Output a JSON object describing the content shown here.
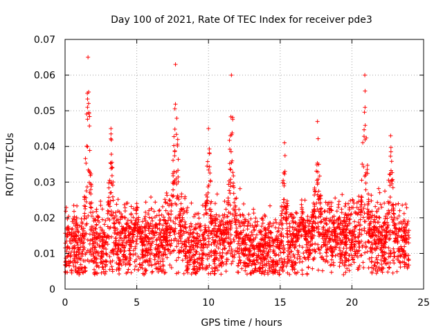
{
  "chart_data": {
    "type": "scatter",
    "title": "Day 100 of 2021, Rate Of TEC Index for receiver pde3",
    "xlabel": "GPS time / hours",
    "ylabel": "ROTI / TECUs",
    "xlim": [
      0,
      25
    ],
    "ylim": [
      0,
      0.07
    ],
    "xticks": [
      0,
      5,
      10,
      15,
      20,
      25
    ],
    "yticks": [
      0,
      0.01,
      0.02,
      0.03,
      0.04,
      0.05,
      0.06,
      0.07
    ],
    "xtick_labels": [
      "0",
      "5",
      "10",
      "15",
      "20",
      "25"
    ],
    "ytick_labels": [
      "0",
      "0.01",
      "0.02",
      "0.03",
      "0.04",
      "0.05",
      "0.06",
      "0.07"
    ],
    "grid": true,
    "marker": "+",
    "series_color": "#ff0000",
    "clusters": [
      {
        "x_start": 0.0,
        "x_end": 2.0,
        "base": 0.012,
        "peak": 0.065,
        "peak_x": 1.6
      },
      {
        "x_start": 2.0,
        "x_end": 3.6,
        "base": 0.012,
        "peak": 0.045,
        "peak_x": 3.2
      },
      {
        "x_start": 3.6,
        "x_end": 7.0,
        "base": 0.013,
        "peak": 0.024,
        "peak_x": 5.0
      },
      {
        "x_start": 7.0,
        "x_end": 8.5,
        "base": 0.016,
        "peak": 0.063,
        "peak_x": 7.7
      },
      {
        "x_start": 8.5,
        "x_end": 10.5,
        "base": 0.012,
        "peak": 0.045,
        "peak_x": 10.0
      },
      {
        "x_start": 10.5,
        "x_end": 12.5,
        "base": 0.014,
        "peak": 0.06,
        "peak_x": 11.6
      },
      {
        "x_start": 12.5,
        "x_end": 15.5,
        "base": 0.011,
        "peak": 0.041,
        "peak_x": 15.3
      },
      {
        "x_start": 15.5,
        "x_end": 17.2,
        "base": 0.013,
        "peak": 0.025,
        "peak_x": 16.5
      },
      {
        "x_start": 17.2,
        "x_end": 20.5,
        "base": 0.015,
        "peak": 0.047,
        "peak_x": 17.6
      },
      {
        "x_start": 20.5,
        "x_end": 22.0,
        "base": 0.015,
        "peak": 0.06,
        "peak_x": 20.9
      },
      {
        "x_start": 22.0,
        "x_end": 24.0,
        "base": 0.013,
        "peak": 0.043,
        "peak_x": 22.7
      }
    ]
  }
}
